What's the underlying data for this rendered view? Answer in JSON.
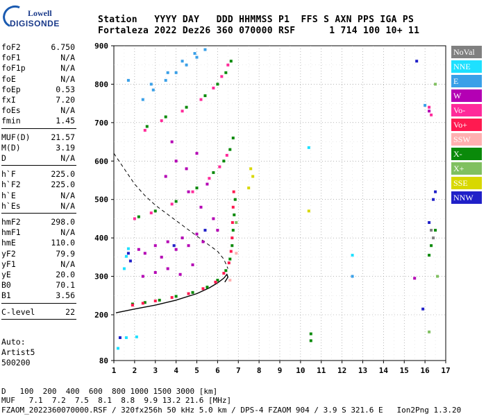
{
  "logo": {
    "line1": "Lowell",
    "line2": "DIGISONDE"
  },
  "header": {
    "line1": "Station   YYYY DAY   DDD HHMMSS P1  FFS S AXN PPS IGA PS",
    "line2": "Fortaleza 2022 Dez26 360 070000 RSF      1 714 100 10+ 11"
  },
  "params": [
    {
      "group": [
        {
          "name": "foF2",
          "value": "6.750"
        },
        {
          "name": "foF1",
          "value": "N/A"
        },
        {
          "name": "foF1p",
          "value": "N/A"
        },
        {
          "name": "foE",
          "value": "N/A"
        },
        {
          "name": "foEp",
          "value": "0.53"
        },
        {
          "name": "fxI",
          "value": "7.20"
        },
        {
          "name": "foEs",
          "value": "N/A"
        },
        {
          "name": "fmin",
          "value": "1.45"
        }
      ]
    },
    {
      "group": [
        {
          "name": "MUF(D)",
          "value": "21.57"
        },
        {
          "name": "M(D)",
          "value": "3.19"
        },
        {
          "name": "D",
          "value": "N/A"
        }
      ]
    },
    {
      "group": [
        {
          "name": "h`F",
          "value": "225.0"
        },
        {
          "name": "h`F2",
          "value": "225.0"
        },
        {
          "name": "h`E",
          "value": "N/A"
        },
        {
          "name": "h`Es",
          "value": "N/A"
        }
      ]
    },
    {
      "group": [
        {
          "name": "hmF2",
          "value": "298.0"
        },
        {
          "name": "hmF1",
          "value": "N/A"
        },
        {
          "name": "hmE",
          "value": "110.0"
        },
        {
          "name": "yF2",
          "value": "79.9"
        },
        {
          "name": "yF1",
          "value": "N/A"
        },
        {
          "name": "yE",
          "value": "20.0"
        },
        {
          "name": "B0",
          "value": "70.1"
        },
        {
          "name": "B1",
          "value": "3.56"
        }
      ]
    },
    {
      "group": [
        {
          "name": "C-level",
          "value": "22"
        }
      ]
    }
  ],
  "auto": [
    "Auto:",
    "Artist5",
    "500200"
  ],
  "legend": [
    {
      "label": "NoVal",
      "color": "#808080"
    },
    {
      "label": "NNE",
      "color": "#1ee0ff"
    },
    {
      "label": "E",
      "color": "#3aa0e8"
    },
    {
      "label": "W",
      "color": "#b400b4"
    },
    {
      "label": "Vo-",
      "color": "#ff2a9a"
    },
    {
      "label": "Vo+",
      "color": "#ff1a50"
    },
    {
      "label": "SSW",
      "color": "#ffb0b0"
    },
    {
      "label": "X-",
      "color": "#0a8a0a"
    },
    {
      "label": "X+",
      "color": "#80c060"
    },
    {
      "label": "SSE",
      "color": "#d8d800"
    },
    {
      "label": "NNW",
      "color": "#2020c8"
    }
  ],
  "chart_data": {
    "type": "scatter",
    "title": "",
    "xlabel": "",
    "ylabel": "",
    "xlim": [
      1,
      17
    ],
    "ylim": [
      80,
      900
    ],
    "x_ticks": [
      "1",
      "2",
      "3",
      "4",
      "5",
      "6",
      "7",
      "8",
      "9",
      "10",
      "11",
      "12",
      "13",
      "14",
      "15",
      "16",
      "17"
    ],
    "y_ticks": [
      "80",
      "200",
      "300",
      "400",
      "500",
      "600",
      "700",
      "800",
      "900"
    ],
    "grid": "dotted",
    "series": [
      {
        "name": "X-",
        "color": "#0a8a0a",
        "points": [
          [
            1.9,
            228
          ],
          [
            2.5,
            232
          ],
          [
            3.2,
            238
          ],
          [
            4.0,
            248
          ],
          [
            4.8,
            258
          ],
          [
            5.5,
            272
          ],
          [
            6.0,
            290
          ],
          [
            6.4,
            315
          ],
          [
            6.6,
            345
          ],
          [
            6.7,
            380
          ],
          [
            6.75,
            420
          ],
          [
            6.8,
            460
          ],
          [
            6.85,
            500
          ],
          [
            2.2,
            455
          ],
          [
            3.0,
            470
          ],
          [
            4.0,
            495
          ],
          [
            5.0,
            530
          ],
          [
            5.8,
            570
          ],
          [
            6.3,
            600
          ],
          [
            6.6,
            630
          ],
          [
            6.75,
            660
          ],
          [
            2.6,
            690
          ],
          [
            3.5,
            715
          ],
          [
            4.5,
            740
          ],
          [
            5.4,
            770
          ],
          [
            6.0,
            800
          ],
          [
            6.4,
            830
          ],
          [
            6.65,
            860
          ],
          [
            16.2,
            355
          ],
          [
            16.3,
            380
          ],
          [
            16.5,
            420
          ],
          [
            10.5,
            132
          ],
          [
            10.5,
            150
          ]
        ]
      },
      {
        "name": "Vo+",
        "color": "#ff1a50",
        "points": [
          [
            1.9,
            225
          ],
          [
            2.4,
            230
          ],
          [
            3.0,
            236
          ],
          [
            3.8,
            245
          ],
          [
            4.6,
            255
          ],
          [
            5.3,
            268
          ],
          [
            5.9,
            285
          ],
          [
            6.3,
            308
          ],
          [
            6.55,
            335
          ],
          [
            6.65,
            365
          ],
          [
            6.7,
            400
          ],
          [
            6.72,
            440
          ],
          [
            6.75,
            480
          ],
          [
            6.78,
            520
          ]
        ]
      },
      {
        "name": "Vo-",
        "color": "#ff2a9a",
        "points": [
          [
            2.0,
            450
          ],
          [
            2.8,
            465
          ],
          [
            3.8,
            488
          ],
          [
            4.8,
            520
          ],
          [
            5.6,
            555
          ],
          [
            6.1,
            585
          ],
          [
            6.45,
            615
          ],
          [
            2.5,
            680
          ],
          [
            3.3,
            705
          ],
          [
            4.3,
            730
          ],
          [
            5.2,
            760
          ],
          [
            5.8,
            790
          ],
          [
            6.2,
            820
          ],
          [
            6.5,
            850
          ],
          [
            16.2,
            740
          ],
          [
            16.3,
            720
          ]
        ]
      },
      {
        "name": "W",
        "color": "#b400b4",
        "points": [
          [
            2.2,
            370
          ],
          [
            2.5,
            360
          ],
          [
            3.0,
            380
          ],
          [
            3.3,
            350
          ],
          [
            3.6,
            390
          ],
          [
            4.0,
            370
          ],
          [
            4.3,
            400
          ],
          [
            4.6,
            380
          ],
          [
            5.0,
            410
          ],
          [
            5.3,
            390
          ],
          [
            2.4,
            300
          ],
          [
            3.0,
            310
          ],
          [
            3.6,
            320
          ],
          [
            4.2,
            305
          ],
          [
            4.8,
            330
          ],
          [
            3.5,
            560
          ],
          [
            4.0,
            600
          ],
          [
            4.5,
            580
          ],
          [
            5.0,
            620
          ],
          [
            5.5,
            540
          ],
          [
            3.8,
            650
          ],
          [
            4.6,
            520
          ],
          [
            5.2,
            480
          ],
          [
            5.8,
            450
          ],
          [
            6.0,
            420
          ],
          [
            16.2,
            730
          ],
          [
            15.5,
            295
          ]
        ]
      },
      {
        "name": "E",
        "color": "#3aa0e8",
        "points": [
          [
            2.4,
            760
          ],
          [
            2.9,
            785
          ],
          [
            3.5,
            810
          ],
          [
            4.0,
            830
          ],
          [
            4.5,
            850
          ],
          [
            5.0,
            870
          ],
          [
            5.4,
            890
          ],
          [
            2.8,
            800
          ],
          [
            3.6,
            830
          ],
          [
            4.3,
            860
          ],
          [
            4.9,
            880
          ],
          [
            1.7,
            810
          ],
          [
            16.0,
            745
          ],
          [
            12.5,
            300
          ]
        ]
      },
      {
        "name": "NNE",
        "color": "#1ee0ff",
        "points": [
          [
            1.6,
            352
          ],
          [
            1.7,
            372
          ],
          [
            1.5,
            320
          ],
          [
            2.1,
            142
          ],
          [
            1.6,
            140
          ],
          [
            12.5,
            355
          ],
          [
            10.4,
            635
          ],
          [
            1.2,
            112
          ]
        ]
      },
      {
        "name": "NNW",
        "color": "#2020c8",
        "points": [
          [
            1.8,
            340
          ],
          [
            1.7,
            360
          ],
          [
            3.9,
            380
          ],
          [
            5.4,
            420
          ],
          [
            16.2,
            440
          ],
          [
            16.4,
            500
          ],
          [
            16.5,
            520
          ],
          [
            15.6,
            860
          ],
          [
            15.9,
            215
          ],
          [
            1.3,
            140
          ]
        ]
      },
      {
        "name": "SSE",
        "color": "#d8d800",
        "points": [
          [
            7.6,
            580
          ],
          [
            7.7,
            560
          ],
          [
            7.5,
            530
          ],
          [
            10.4,
            470
          ]
        ]
      },
      {
        "name": "SSW",
        "color": "#ffb0b0",
        "points": [
          [
            6.6,
            290
          ],
          [
            6.9,
            360
          ]
        ]
      },
      {
        "name": "X+",
        "color": "#80c060",
        "points": [
          [
            16.5,
            800
          ],
          [
            16.2,
            155
          ],
          [
            16.6,
            300
          ],
          [
            6.9,
            440
          ]
        ]
      },
      {
        "name": "NoVal",
        "color": "#808080",
        "points": [
          [
            16.3,
            420
          ],
          [
            16.4,
            400
          ]
        ]
      }
    ],
    "profile_curve": [
      [
        1.1,
        205
      ],
      [
        2.0,
        215
      ],
      [
        3.0,
        225
      ],
      [
        4.0,
        238
      ],
      [
        5.0,
        255
      ],
      [
        5.6,
        270
      ],
      [
        6.0,
        283
      ],
      [
        6.3,
        295
      ],
      [
        6.45,
        305
      ],
      [
        6.5,
        298
      ],
      [
        6.35,
        285
      ]
    ],
    "dashed_curve": [
      [
        1.0,
        620
      ],
      [
        1.5,
        580
      ],
      [
        2.0,
        540
      ],
      [
        2.5,
        510
      ],
      [
        3.0,
        485
      ],
      [
        3.5,
        465
      ],
      [
        4.0,
        445
      ],
      [
        4.5,
        425
      ],
      [
        5.0,
        405
      ],
      [
        5.5,
        385
      ],
      [
        6.0,
        365
      ],
      [
        6.3,
        345
      ],
      [
        6.5,
        320
      ]
    ]
  },
  "footer": {
    "dist_label": "D",
    "dist_values": "100  200  400  600  800 1000 1500 3000 [km]",
    "muf_label": "MUF",
    "muf_values": "7.1  7.2  7.5  8.1  8.8  9.9 13.2 21.6 [MHz]",
    "file_line": "FZAOM_2022360070000.RSF / 320fx256h 50 kHz 5.0 km / DPS-4 FZAOM 904 / 3.9 S 321.6 E   Ion2Png 1.3.20"
  }
}
